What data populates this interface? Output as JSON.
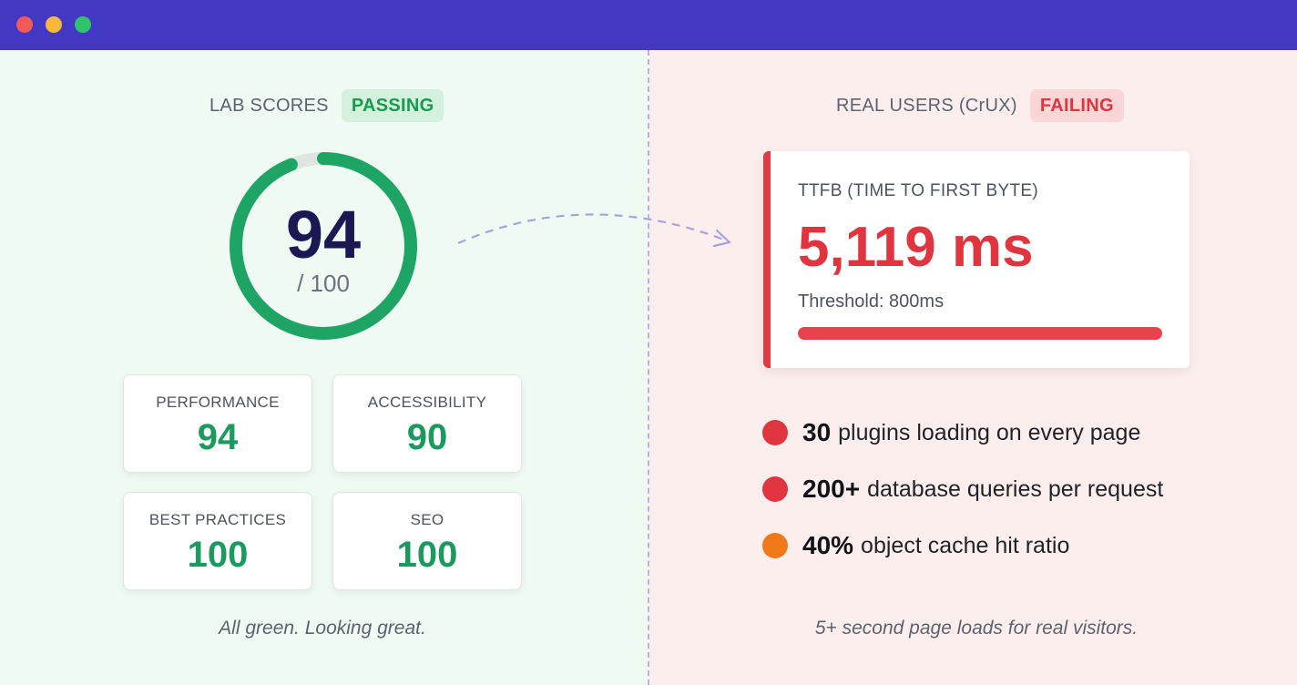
{
  "window": {
    "controls": [
      "close",
      "minimize",
      "maximize"
    ],
    "colors": {
      "titlebar": "#4338c4",
      "close": "#f25a5a",
      "minimize": "#f6b93b",
      "maximize": "#2fc46b"
    }
  },
  "lab": {
    "label": "LAB SCORES",
    "badge": "PASSING",
    "score": "94",
    "score_value": 94,
    "score_max": "/ 100",
    "cards": [
      {
        "label": "PERFORMANCE",
        "value": "94"
      },
      {
        "label": "ACCESSIBILITY",
        "value": "90"
      },
      {
        "label": "BEST PRACTICES",
        "value": "100"
      },
      {
        "label": "SEO",
        "value": "100"
      }
    ],
    "caption": "All green. Looking great.",
    "colors": {
      "gauge": "#1ea464",
      "gauge_track": "#dfe6e2",
      "accent": "#1a9a5c"
    }
  },
  "real": {
    "label": "REAL USERS (CrUX)",
    "badge": "FAILING",
    "metric": {
      "label": "TTFB (TIME TO FIRST BYTE)",
      "value": "5,119 ms",
      "threshold": "Threshold: 800ms",
      "bar_fill_fraction": 1.0
    },
    "facts": [
      {
        "strong": "30",
        "text": "plugins loading on every page",
        "color": "#e0343f"
      },
      {
        "strong": "200+",
        "text": "database queries per request",
        "color": "#e0343f"
      },
      {
        "strong": "40%",
        "text": "object cache hit ratio",
        "color": "#f07a1a"
      }
    ],
    "caption": "5+ second page loads for real visitors.",
    "colors": {
      "accent": "#e0343f"
    }
  },
  "icons": {
    "arrow": "dashed-curved-arrow-icon"
  }
}
